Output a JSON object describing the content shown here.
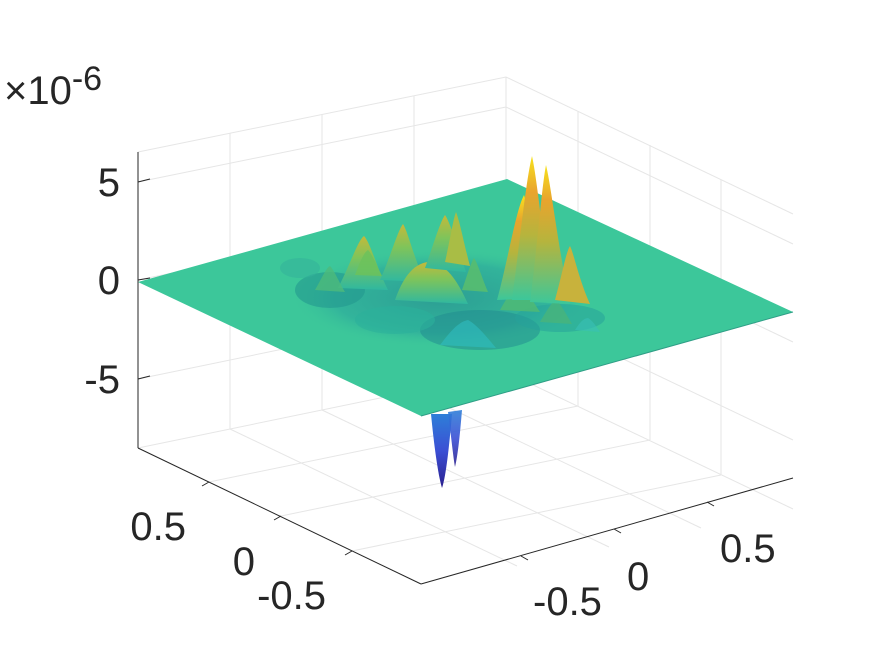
{
  "chart_data": {
    "type": "surface",
    "title": "",
    "xlabel": "",
    "ylabel": "",
    "zlabel": "",
    "z_exponent": "×10",
    "z_exponent_power": "-6",
    "xlim": [
      -1,
      1
    ],
    "ylim": [
      -1,
      1
    ],
    "zlim": [
      -8,
      6
    ],
    "x_ticks": [
      {
        "value": -0.5,
        "label": "-0.5"
      },
      {
        "value": 0,
        "label": "0"
      },
      {
        "value": 0.5,
        "label": "0.5"
      }
    ],
    "y_ticks": [
      {
        "value": -0.5,
        "label": "-0.5"
      },
      {
        "value": 0,
        "label": "0"
      },
      {
        "value": 0.5,
        "label": "0.5"
      }
    ],
    "z_ticks": [
      {
        "value": -5,
        "label": "-5"
      },
      {
        "value": 0,
        "label": "0"
      },
      {
        "value": 5,
        "label": "5"
      }
    ],
    "grid": true,
    "colormap": "parula",
    "colors": {
      "flat": "#3cc79a",
      "axis": "#262626",
      "grid": "#e6e6e6"
    },
    "features": [
      {
        "kind": "peak",
        "x": 0.6,
        "y": 0.15,
        "z": 5.8
      },
      {
        "kind": "peak",
        "x": 0.55,
        "y": 0.2,
        "z": 5.0
      },
      {
        "kind": "peak",
        "x": 0.48,
        "y": 0.1,
        "z": 3.5
      },
      {
        "kind": "peak",
        "x": 0.0,
        "y": 0.25,
        "z": 2.0
      },
      {
        "kind": "peak",
        "x": -0.1,
        "y": 0.4,
        "z": 2.2
      },
      {
        "kind": "peak",
        "x": 0.25,
        "y": 0.4,
        "z": 3.0
      },
      {
        "kind": "peak",
        "x": -0.2,
        "y": 0.55,
        "z": 1.6
      },
      {
        "kind": "dip",
        "x": -0.85,
        "y": -0.85,
        "z": -7.5
      }
    ]
  }
}
